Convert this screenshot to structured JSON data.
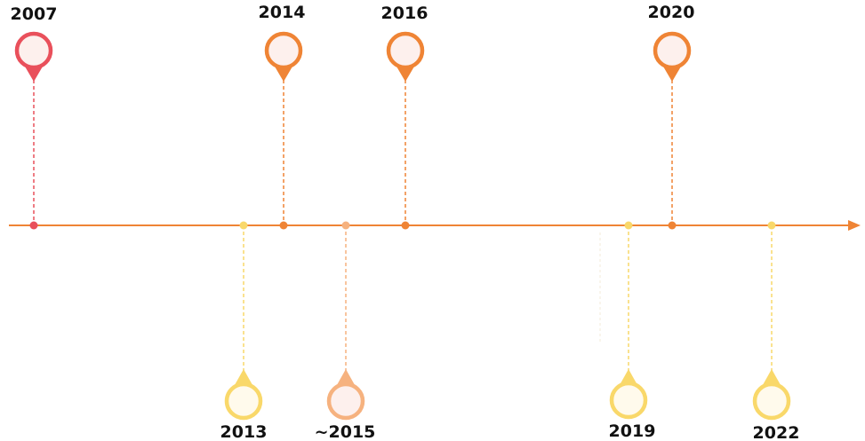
{
  "timeline": {
    "colors": {
      "axis": "#ef8435",
      "red": "#e9505b",
      "orange": "#ef8435",
      "peach": "#f6b27f",
      "yellow": "#f9d86a",
      "pin_inner": "#fdf0ed",
      "pin_inner_yellow": "#fffaec"
    },
    "events": [
      {
        "year": "2007",
        "side": "above",
        "color": "red"
      },
      {
        "year": "2013",
        "side": "below",
        "color": "yellow"
      },
      {
        "year": "2014",
        "side": "above",
        "color": "orange"
      },
      {
        "year": "~2015",
        "side": "below",
        "color": "peach"
      },
      {
        "year": "2016",
        "side": "above",
        "color": "orange"
      },
      {
        "year": "2019",
        "side": "below",
        "color": "yellow"
      },
      {
        "year": "2020",
        "side": "above",
        "color": "orange"
      },
      {
        "year": "2022",
        "side": "below",
        "color": "yellow"
      }
    ]
  }
}
